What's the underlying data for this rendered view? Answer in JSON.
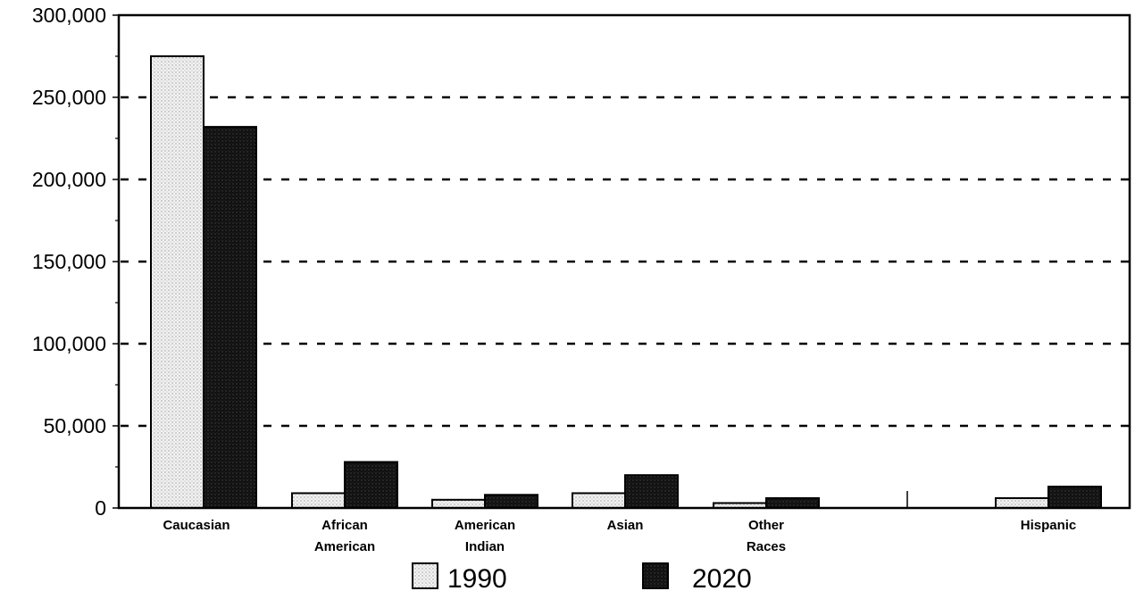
{
  "chart_data": {
    "type": "bar",
    "categories": [
      "Caucasian",
      "African\nAmerican",
      "American\nIndian",
      "Asian",
      "Other\nRaces",
      "Hispanic"
    ],
    "series": [
      {
        "name": "1990",
        "values": [
          275000,
          9000,
          5000,
          9000,
          3000,
          6000
        ],
        "color": "#e4e4e4"
      },
      {
        "name": "2020",
        "values": [
          232000,
          28000,
          8000,
          20000,
          6000,
          13000
        ],
        "color": "#111111"
      }
    ],
    "ylim": [
      0,
      300000
    ],
    "yticks": [
      "0",
      "50,000",
      "100,000",
      "150,000",
      "200,000",
      "250,000",
      "300,000"
    ],
    "grid": true,
    "legend_position": "bottom"
  }
}
